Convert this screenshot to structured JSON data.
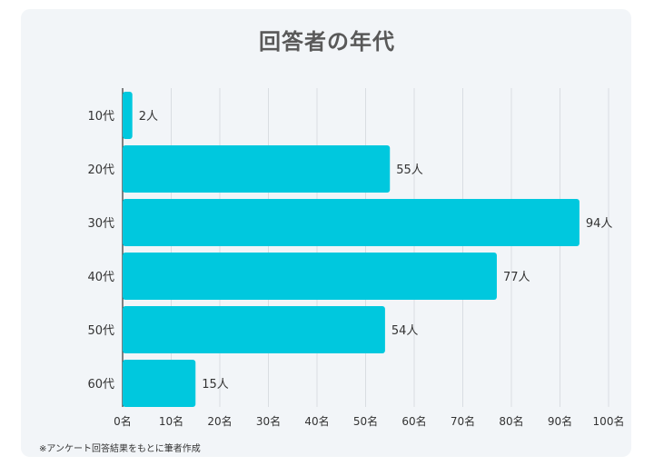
{
  "chart_data": {
    "type": "bar",
    "orientation": "horizontal",
    "title": "回答者の年代",
    "categories": [
      "10代",
      "20代",
      "30代",
      "40代",
      "50代",
      "60代"
    ],
    "values": [
      2,
      55,
      94,
      77,
      54,
      15
    ],
    "value_labels": [
      "2人",
      "55人",
      "94人",
      "77人",
      "54人",
      "15人"
    ],
    "xlim": [
      0,
      100
    ],
    "x_ticks": [
      0,
      10,
      20,
      30,
      40,
      50,
      60,
      70,
      80,
      90,
      100
    ],
    "x_tick_labels": [
      "0名",
      "10名",
      "20名",
      "30名",
      "40名",
      "50名",
      "60名",
      "70名",
      "80名",
      "90名",
      "100名"
    ],
    "grid": true,
    "bar_color": "#00c8de",
    "footnote": "※アンケート回答結果をもとに筆者作成"
  }
}
